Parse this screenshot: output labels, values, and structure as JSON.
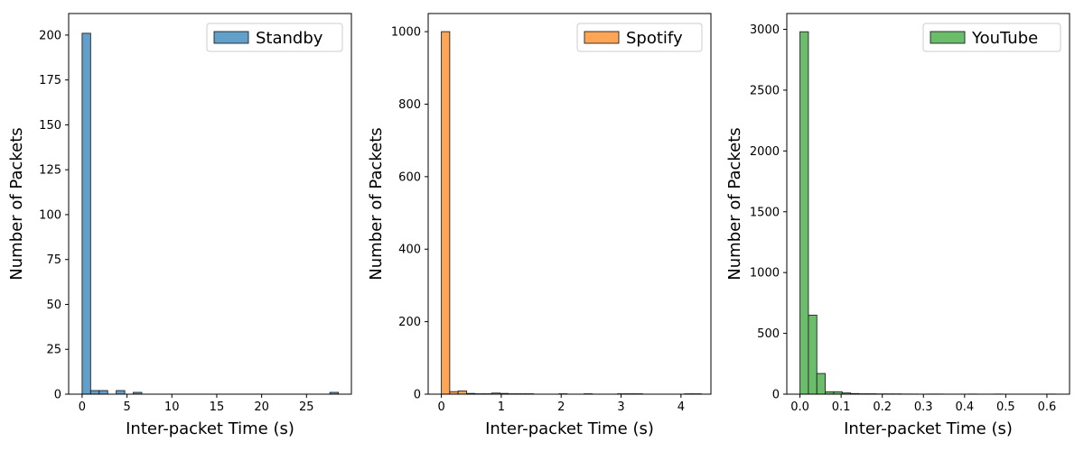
{
  "chart_data": [
    {
      "type": "bar",
      "series": [
        {
          "name": "Standby",
          "color": "#1f77b4"
        }
      ],
      "xlabel": "Inter-packet Time (s)",
      "ylabel": "Number of Packets",
      "xlim": [
        -1.5,
        30
      ],
      "ylim": [
        0,
        212
      ],
      "xticks": [
        0,
        5,
        10,
        15,
        20,
        25
      ],
      "yticks": [
        0,
        25,
        50,
        75,
        100,
        125,
        150,
        175,
        200
      ],
      "bins": [
        {
          "start": 0.0,
          "end": 0.95,
          "count": 201
        },
        {
          "start": 0.95,
          "end": 1.9,
          "count": 2
        },
        {
          "start": 1.9,
          "end": 2.85,
          "count": 2
        },
        {
          "start": 3.8,
          "end": 4.75,
          "count": 2
        },
        {
          "start": 5.7,
          "end": 6.65,
          "count": 1
        },
        {
          "start": 27.6,
          "end": 28.55,
          "count": 1
        }
      ],
      "legend_position": "top-right",
      "grid": false
    },
    {
      "type": "bar",
      "series": [
        {
          "name": "Spotify",
          "color": "#ff7f0e"
        }
      ],
      "xlabel": "Inter-packet Time (s)",
      "ylabel": "Number of Packets",
      "xlim": [
        -0.22,
        4.5
      ],
      "ylim": [
        0,
        1050
      ],
      "xticks": [
        0,
        1,
        2,
        3,
        4
      ],
      "yticks": [
        0,
        200,
        400,
        600,
        800,
        1000
      ],
      "bins": [
        {
          "start": 0.0,
          "end": 0.14,
          "count": 1000
        },
        {
          "start": 0.14,
          "end": 0.28,
          "count": 7
        },
        {
          "start": 0.28,
          "end": 0.42,
          "count": 9
        },
        {
          "start": 0.42,
          "end": 0.56,
          "count": 2
        },
        {
          "start": 0.56,
          "end": 0.7,
          "count": 1
        },
        {
          "start": 0.7,
          "end": 0.84,
          "count": 1
        },
        {
          "start": 0.84,
          "end": 0.98,
          "count": 3
        },
        {
          "start": 0.98,
          "end": 1.12,
          "count": 2
        },
        {
          "start": 1.12,
          "end": 1.26,
          "count": 1
        },
        {
          "start": 1.26,
          "end": 1.4,
          "count": 1
        },
        {
          "start": 1.4,
          "end": 1.54,
          "count": 1
        },
        {
          "start": 1.96,
          "end": 2.1,
          "count": 1
        },
        {
          "start": 2.38,
          "end": 2.52,
          "count": 1
        },
        {
          "start": 2.94,
          "end": 3.08,
          "count": 1
        },
        {
          "start": 3.08,
          "end": 3.22,
          "count": 1
        },
        {
          "start": 3.22,
          "end": 3.36,
          "count": 1
        },
        {
          "start": 4.06,
          "end": 4.2,
          "count": 1
        },
        {
          "start": 4.2,
          "end": 4.34,
          "count": 1
        }
      ],
      "legend_position": "top-right",
      "grid": false
    },
    {
      "type": "bar",
      "series": [
        {
          "name": "YouTube",
          "color": "#2ca02c"
        }
      ],
      "xlabel": "Inter-packet Time (s)",
      "ylabel": "Number of Packets",
      "xlim": [
        -0.032,
        0.655
      ],
      "ylim": [
        0,
        3130
      ],
      "xticks": [
        0.0,
        0.1,
        0.2,
        0.3,
        0.4,
        0.5,
        0.6
      ],
      "yticks": [
        0,
        500,
        1000,
        1500,
        2000,
        2500,
        3000
      ],
      "bins": [
        {
          "start": 0.0,
          "end": 0.0205,
          "count": 2980
        },
        {
          "start": 0.0205,
          "end": 0.041,
          "count": 650
        },
        {
          "start": 0.041,
          "end": 0.0615,
          "count": 170
        },
        {
          "start": 0.0615,
          "end": 0.082,
          "count": 20
        },
        {
          "start": 0.082,
          "end": 0.1025,
          "count": 20
        },
        {
          "start": 0.1025,
          "end": 0.123,
          "count": 10
        },
        {
          "start": 0.123,
          "end": 0.1435,
          "count": 5
        },
        {
          "start": 0.1435,
          "end": 0.164,
          "count": 3
        },
        {
          "start": 0.164,
          "end": 0.1845,
          "count": 3
        },
        {
          "start": 0.1845,
          "end": 0.205,
          "count": 2
        },
        {
          "start": 0.205,
          "end": 0.2255,
          "count": 2
        },
        {
          "start": 0.2255,
          "end": 0.246,
          "count": 2
        },
        {
          "start": 0.246,
          "end": 0.2665,
          "count": 1
        },
        {
          "start": 0.2665,
          "end": 0.287,
          "count": 1
        },
        {
          "start": 0.3075,
          "end": 0.328,
          "count": 1
        },
        {
          "start": 0.328,
          "end": 0.3485,
          "count": 1
        },
        {
          "start": 0.41,
          "end": 0.4305,
          "count": 1
        },
        {
          "start": 0.4715,
          "end": 0.492,
          "count": 1
        },
        {
          "start": 0.6,
          "end": 0.6205,
          "count": 1
        }
      ],
      "legend_position": "top-right",
      "grid": false
    }
  ]
}
